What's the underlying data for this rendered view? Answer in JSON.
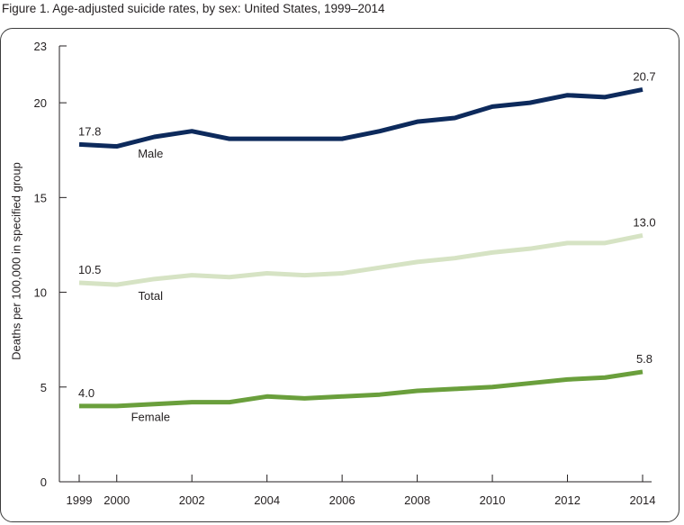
{
  "figure_title": "Figure 1. Age-adjusted suicide rates, by sex: United States, 1999–2014",
  "chart_data": {
    "type": "line",
    "ylabel": "Deaths per 100,000 in specified group",
    "ylim": [
      0,
      23
    ],
    "yticks": [
      0,
      5,
      10,
      15,
      20,
      23
    ],
    "xlim": [
      1999,
      2014
    ],
    "xticks": [
      1999,
      2000,
      2002,
      2004,
      2006,
      2008,
      2010,
      2012,
      2014
    ],
    "grid": false,
    "x": [
      1999,
      2000,
      2001,
      2002,
      2003,
      2004,
      2005,
      2006,
      2007,
      2008,
      2009,
      2010,
      2011,
      2012,
      2013,
      2014
    ],
    "series": [
      {
        "name": "Male",
        "color": "#0d2a5c",
        "values": [
          17.8,
          17.7,
          18.2,
          18.5,
          18.1,
          18.1,
          18.1,
          18.1,
          18.5,
          19.0,
          19.2,
          19.8,
          20.0,
          20.4,
          20.3,
          20.7
        ],
        "label_x": 2000.9,
        "label_y": 17.1,
        "first_label": "17.8",
        "last_label": "20.7"
      },
      {
        "name": "Total",
        "color": "#d6e3c4",
        "values": [
          10.5,
          10.4,
          10.7,
          10.9,
          10.8,
          11.0,
          10.9,
          11.0,
          11.3,
          11.6,
          11.8,
          12.1,
          12.3,
          12.6,
          12.6,
          13.0
        ],
        "label_x": 2000.9,
        "label_y": 9.6,
        "first_label": "10.5",
        "last_label": "13.0"
      },
      {
        "name": "Female",
        "color": "#6a9f3c",
        "values": [
          4.0,
          4.0,
          4.1,
          4.2,
          4.2,
          4.5,
          4.4,
          4.5,
          4.6,
          4.8,
          4.9,
          5.0,
          5.2,
          5.4,
          5.5,
          5.8
        ],
        "label_x": 2000.9,
        "label_y": 3.2,
        "first_label": "4.0",
        "last_label": "5.8"
      }
    ]
  }
}
